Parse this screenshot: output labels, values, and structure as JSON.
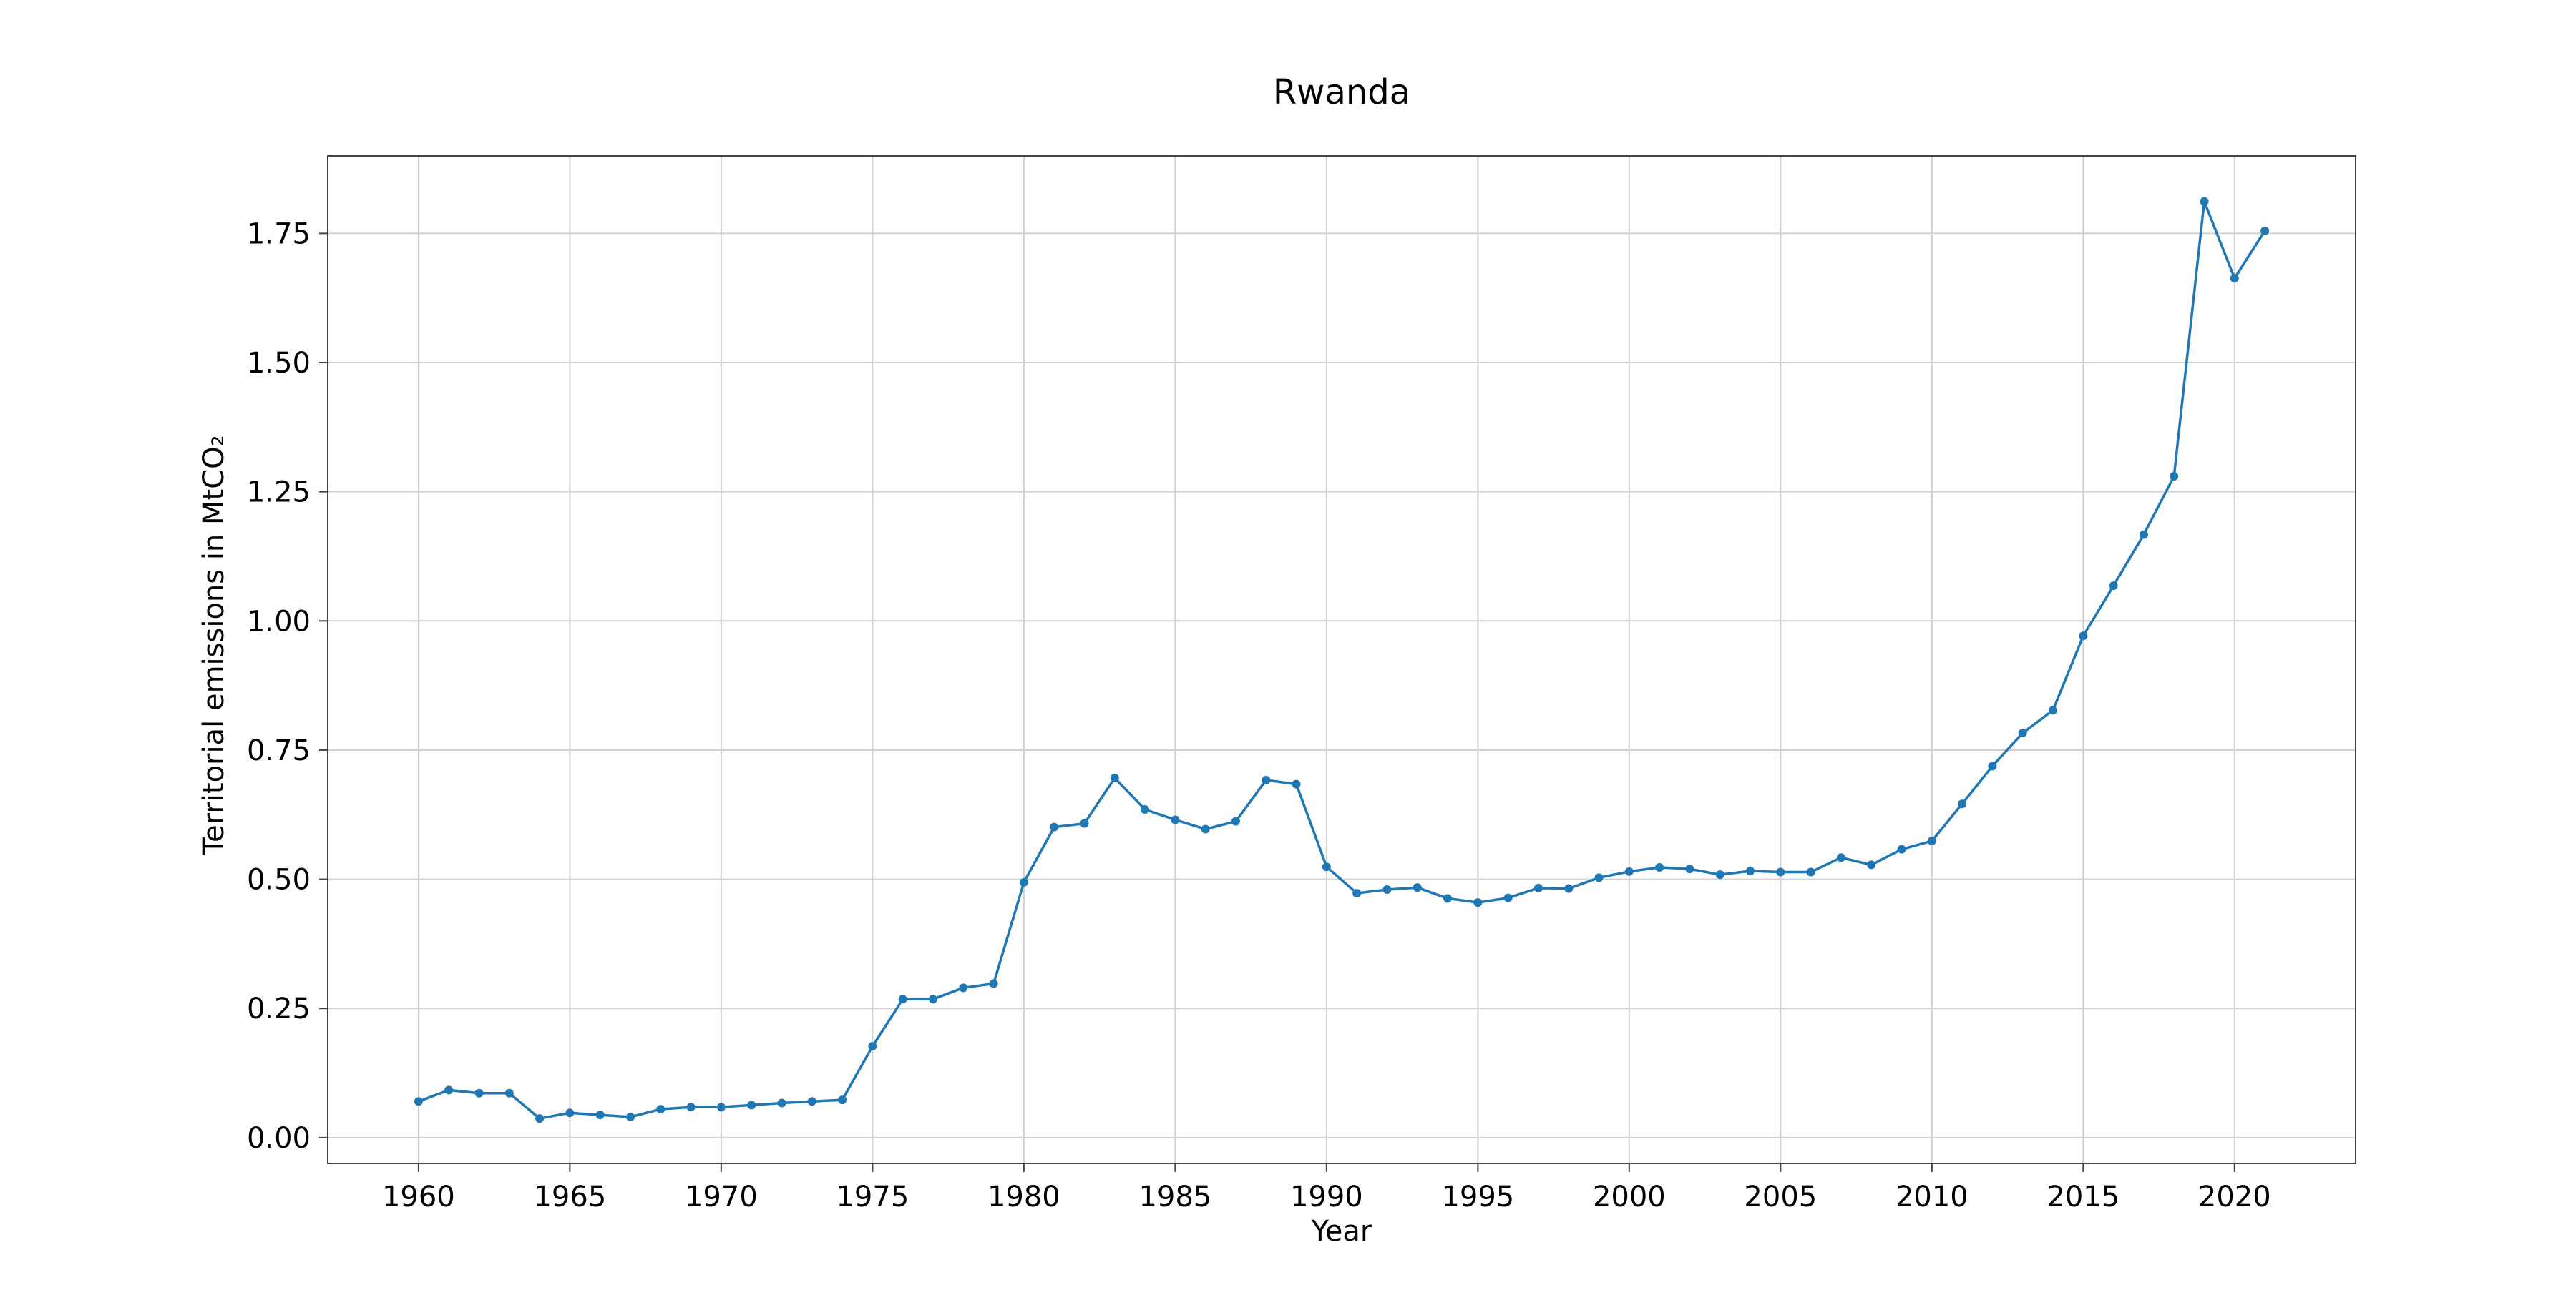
{
  "chart_data": {
    "type": "line",
    "title": "Rwanda",
    "xlabel": "Year",
    "ylabel": "Territorial emissions in MtCO₂",
    "xlim": [
      1957,
      2024
    ],
    "ylim": [
      -0.05,
      1.9
    ],
    "x_ticks": [
      1960,
      1965,
      1970,
      1975,
      1980,
      1985,
      1990,
      1995,
      2000,
      2005,
      2010,
      2015,
      2020
    ],
    "y_ticks": [
      0.0,
      0.25,
      0.5,
      0.75,
      1.0,
      1.25,
      1.5,
      1.75
    ],
    "y_tick_labels": [
      "0.00",
      "0.25",
      "0.50",
      "0.75",
      "1.00",
      "1.25",
      "1.50",
      "1.75"
    ],
    "grid": true,
    "series": [
      {
        "color": "#1f77b4",
        "marker": "circle",
        "x": [
          1960,
          1961,
          1962,
          1963,
          1964,
          1965,
          1966,
          1967,
          1968,
          1969,
          1970,
          1971,
          1972,
          1973,
          1974,
          1975,
          1976,
          1977,
          1978,
          1979,
          1980,
          1981,
          1982,
          1983,
          1984,
          1985,
          1986,
          1987,
          1988,
          1989,
          1990,
          1991,
          1992,
          1993,
          1994,
          1995,
          1996,
          1997,
          1998,
          1999,
          2000,
          2001,
          2002,
          2003,
          2004,
          2005,
          2006,
          2007,
          2008,
          2009,
          2010,
          2011,
          2012,
          2013,
          2014,
          2015,
          2016,
          2017,
          2018,
          2019,
          2020,
          2021
        ],
        "values": [
          0.07,
          0.092,
          0.086,
          0.086,
          0.037,
          0.048,
          0.044,
          0.04,
          0.055,
          0.059,
          0.059,
          0.063,
          0.067,
          0.07,
          0.073,
          0.177,
          0.268,
          0.268,
          0.29,
          0.298,
          0.494,
          0.601,
          0.608,
          0.696,
          0.635,
          0.615,
          0.597,
          0.612,
          0.692,
          0.684,
          0.524,
          0.473,
          0.48,
          0.484,
          0.463,
          0.455,
          0.464,
          0.483,
          0.482,
          0.503,
          0.515,
          0.523,
          0.52,
          0.509,
          0.516,
          0.514,
          0.514,
          0.542,
          0.528,
          0.558,
          0.574,
          0.646,
          0.719,
          0.783,
          0.827,
          0.971,
          1.068,
          1.167,
          1.28,
          1.812,
          1.663,
          1.755
        ]
      }
    ]
  }
}
